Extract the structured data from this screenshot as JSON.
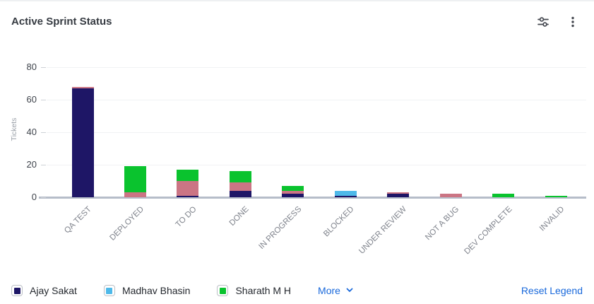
{
  "header": {
    "title": "Active Sprint Status"
  },
  "chart_data": {
    "type": "bar",
    "stacked": true,
    "title": "Active Sprint Status",
    "xlabel": "",
    "ylabel": "Tickets",
    "ylim": [
      0,
      80
    ],
    "yticks": [
      0,
      20,
      40,
      60,
      80
    ],
    "grid": true,
    "legend_position": "bottom",
    "categories": [
      "QA TEST",
      "DEPLOYED",
      "TO DO",
      "DONE",
      "IN PROGRESS",
      "BLOCKED",
      "UNDER REVIEW",
      "NOT A BUG",
      "DEV COMPLETE",
      "INVALID"
    ],
    "series_stack_order": "bottom-to-top",
    "series": [
      {
        "name": "Ajay Sakat",
        "color": "#1e1666",
        "values": [
          67,
          0,
          1,
          4,
          2,
          1,
          2,
          0,
          0,
          0
        ]
      },
      {
        "name": "",
        "color": "#cb7584",
        "values": [
          1,
          3,
          9,
          5,
          2,
          0,
          1,
          2,
          0,
          0
        ]
      },
      {
        "name": "Madhav Bhasin",
        "color": "#4eb9e9",
        "values": [
          0,
          0,
          0,
          0,
          0,
          3,
          0,
          0,
          0,
          0
        ]
      },
      {
        "name": "Sharath M H",
        "color": "#0ac32e",
        "values": [
          0,
          16,
          7,
          7,
          3,
          0,
          0,
          0,
          2,
          1
        ]
      }
    ],
    "totals": [
      68,
      19,
      17,
      16,
      7,
      4,
      3,
      2,
      2,
      1
    ]
  },
  "legend": {
    "items": [
      {
        "label": "Ajay Sakat",
        "color": "#1e1666"
      },
      {
        "label": "Madhav Bhasin",
        "color": "#4eb9e9"
      },
      {
        "label": "Sharath M H",
        "color": "#0ac32e"
      }
    ],
    "more_label": "More",
    "reset_label": "Reset Legend"
  },
  "colors": {
    "link_blue": "#1868db",
    "axis_baseline": "#b6bdc9",
    "gridline": "#f1f2f4"
  }
}
